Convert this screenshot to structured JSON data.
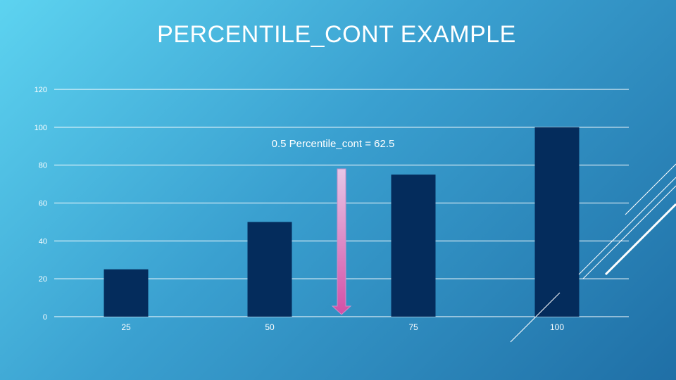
{
  "slide": {
    "title": "PERCENTILE_CONT EXAMPLE"
  },
  "chart_data": {
    "type": "bar",
    "title": "",
    "xlabel": "",
    "ylabel": "",
    "categories": [
      "25",
      "50",
      "75",
      "100"
    ],
    "values": [
      25,
      50,
      75,
      100
    ],
    "ylim": [
      0,
      120
    ],
    "yticks": [
      0,
      20,
      40,
      60,
      80,
      100,
      120
    ],
    "grid": true,
    "bar_color": "#042c5c",
    "annotation": {
      "text": "0.5 Percentile_cont = 62.5",
      "value": 62.5,
      "arrow_from_y": 78,
      "arrow_to_y": 0
    }
  },
  "colors": {
    "grid": "#ffffff",
    "arrow_top": "#e6c6e6",
    "arrow_bottom": "#d44fa6",
    "decor": "#ffffff"
  }
}
